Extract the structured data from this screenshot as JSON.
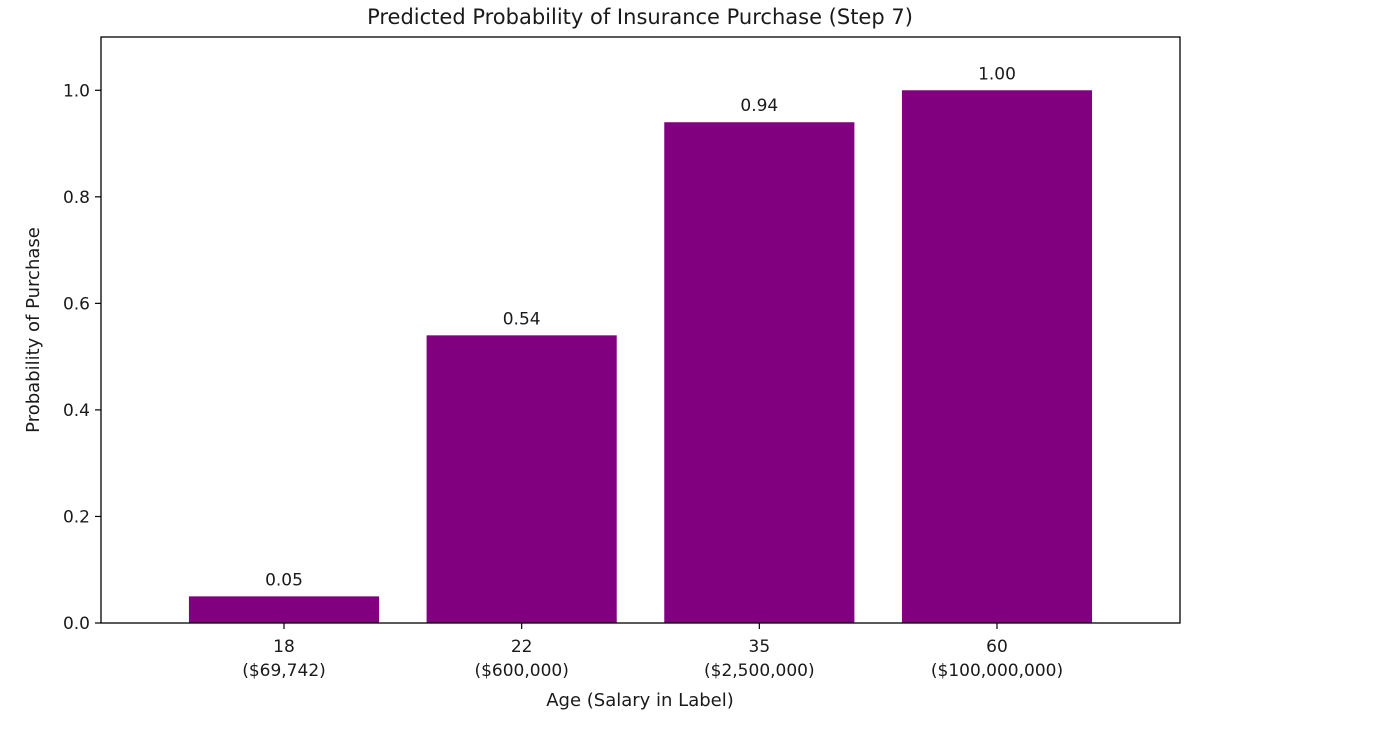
{
  "chart_data": {
    "type": "bar",
    "title": "Predicted Probability of Insurance Purchase (Step 7)",
    "xlabel": "Age (Salary in Label)",
    "ylabel": "Probability of Purchase",
    "categories": [
      {
        "line1": "18",
        "line2": "($69,742)"
      },
      {
        "line1": "22",
        "line2": "($600,000)"
      },
      {
        "line1": "35",
        "line2": "($2,500,000)"
      },
      {
        "line1": "60",
        "line2": "($100,000,000)"
      }
    ],
    "values": [
      0.05,
      0.54,
      0.94,
      1.0
    ],
    "value_labels": [
      "0.05",
      "0.54",
      "0.94",
      "1.00"
    ],
    "ylim": [
      0,
      1.1
    ],
    "yticks": [
      0.0,
      0.2,
      0.4,
      0.6,
      0.8,
      1.0
    ],
    "ytick_labels": [
      "0.0",
      "0.2",
      "0.4",
      "0.6",
      "0.8",
      "1.0"
    ],
    "bar_color": "#800080",
    "grid": false,
    "legend": "none"
  }
}
